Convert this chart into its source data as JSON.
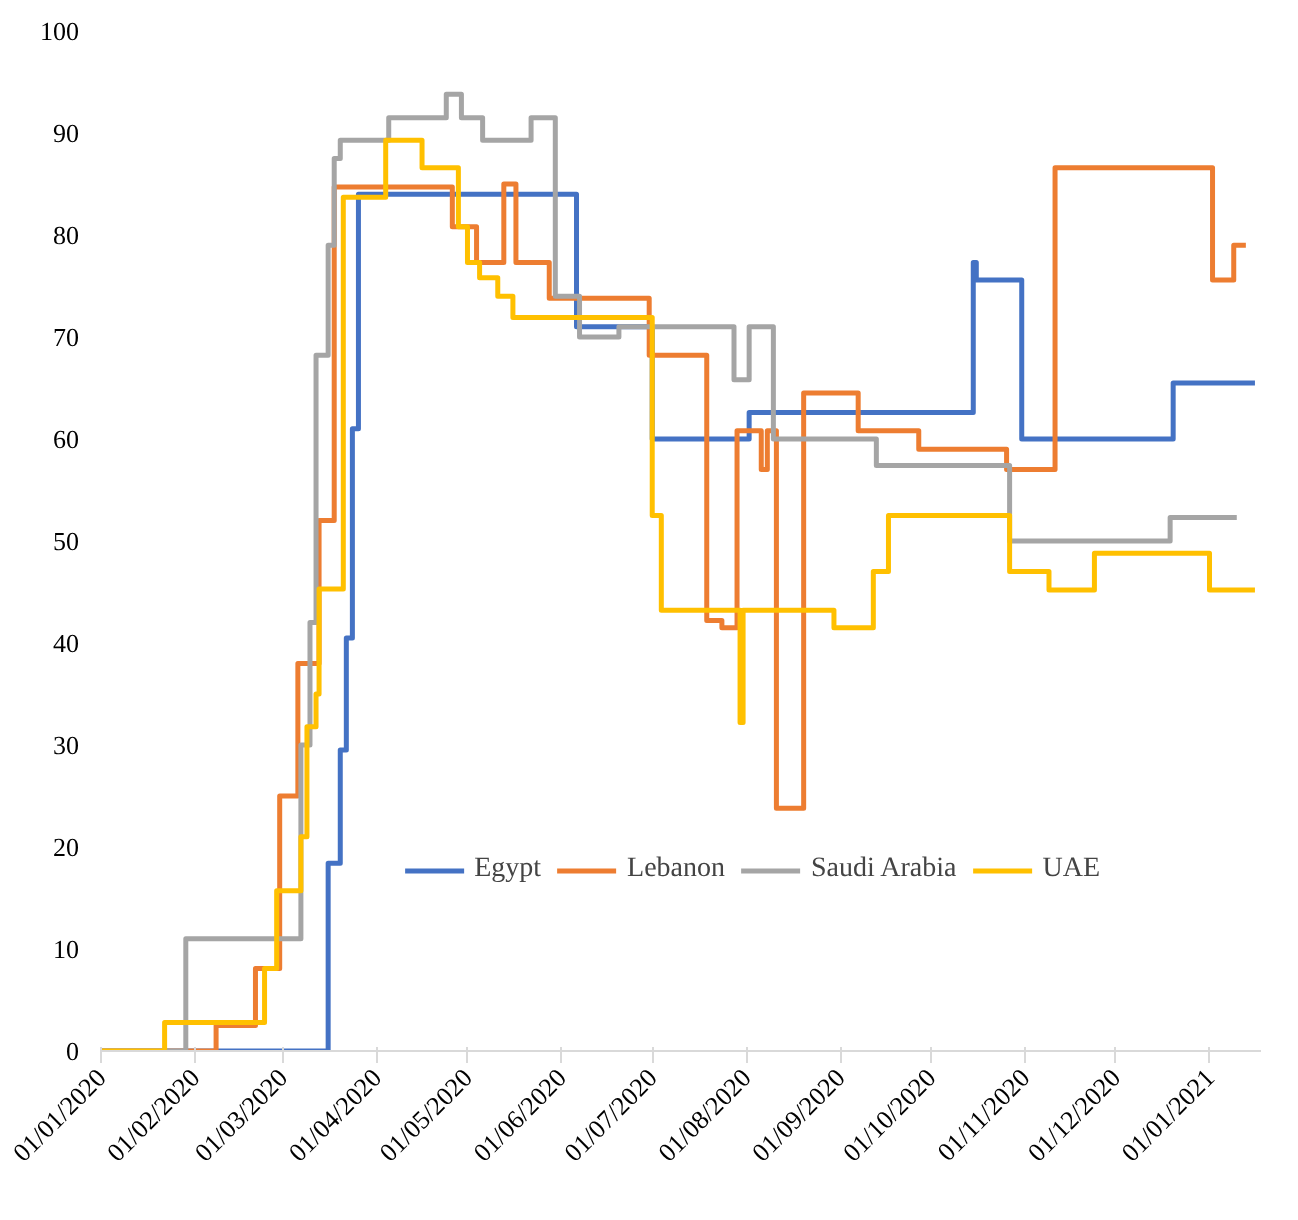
{
  "chart_data": {
    "type": "step",
    "xlim": [
      "2020-01-01",
      "2021-01-18"
    ],
    "xticks": [
      {
        "value": "2020-01-01",
        "label": "01/01/2020"
      },
      {
        "value": "2020-02-01",
        "label": "01/02/2020"
      },
      {
        "value": "2020-03-01",
        "label": "01/03/2020"
      },
      {
        "value": "2020-04-01",
        "label": "01/04/2020"
      },
      {
        "value": "2020-05-01",
        "label": "01/05/2020"
      },
      {
        "value": "2020-06-01",
        "label": "01/06/2020"
      },
      {
        "value": "2020-07-01",
        "label": "01/07/2020"
      },
      {
        "value": "2020-08-01",
        "label": "01/08/2020"
      },
      {
        "value": "2020-09-01",
        "label": "01/09/2020"
      },
      {
        "value": "2020-10-01",
        "label": "01/10/2020"
      },
      {
        "value": "2020-11-01",
        "label": "01/11/2020"
      },
      {
        "value": "2020-12-01",
        "label": "01/12/2020"
      },
      {
        "value": "2021-01-01",
        "label": "01/01/2021"
      }
    ],
    "ylim": [
      0,
      100
    ],
    "yticks": [
      0,
      10,
      20,
      30,
      40,
      50,
      60,
      70,
      80,
      90,
      100
    ],
    "grid": false,
    "legend": "bottom right",
    "line_style": "solid",
    "marker": "none",
    "series": [
      {
        "name": "Egypt",
        "color": "#4472c4",
        "x": [
          "2020-01-01",
          "2020-03-16",
          "2020-03-20",
          "2020-03-22",
          "2020-03-24",
          "2020-03-26",
          "2020-06-06",
          "2020-07-01",
          "2020-08-02",
          "2020-10-15",
          "2020-10-16",
          "2020-10-31",
          "2020-12-20",
          "2021-01-16"
        ],
        "values": [
          0,
          18.4,
          29.5,
          40.5,
          61,
          84,
          71,
          60,
          62.6,
          77.3,
          75.6,
          60,
          65.5,
          65.5
        ]
      },
      {
        "name": "Lebanon",
        "color": "#ed7d31",
        "x": [
          "2020-01-01",
          "2020-02-08",
          "2020-02-21",
          "2020-02-29",
          "2020-03-06",
          "2020-03-13",
          "2020-03-18",
          "2020-04-26",
          "2020-05-04",
          "2020-05-13",
          "2020-05-17",
          "2020-05-28",
          "2020-06-30",
          "2020-07-19",
          "2020-07-24",
          "2020-07-29",
          "2020-08-06",
          "2020-08-08",
          "2020-08-11",
          "2020-08-20",
          "2020-09-07",
          "2020-09-27",
          "2020-10-26",
          "2020-11-11",
          "2021-01-02",
          "2021-01-09",
          "2021-01-13"
        ],
        "values": [
          0,
          2.5,
          8.1,
          25,
          38,
          52,
          84.7,
          80.8,
          77.3,
          85,
          77.3,
          73.8,
          68.2,
          42.2,
          41.5,
          60.8,
          57,
          60.8,
          23.8,
          64.5,
          60.8,
          59,
          57,
          86.6,
          75.6,
          79,
          79
        ]
      },
      {
        "name": "Saudi Arabia",
        "color": "#a5a5a5",
        "x": [
          "2020-01-01",
          "2020-01-29",
          "2020-03-07",
          "2020-03-10",
          "2020-03-12",
          "2020-03-16",
          "2020-03-18",
          "2020-03-20",
          "2020-04-05",
          "2020-04-24",
          "2020-04-29",
          "2020-05-06",
          "2020-05-22",
          "2020-05-30",
          "2020-06-07",
          "2020-06-20",
          "2020-07-28",
          "2020-08-02",
          "2020-08-10",
          "2020-09-13",
          "2020-10-27",
          "2020-12-19",
          "2021-01-10"
        ],
        "values": [
          0,
          11,
          30,
          42,
          68.2,
          79,
          87.5,
          89.3,
          91.5,
          93.8,
          91.5,
          89.3,
          91.5,
          74,
          70,
          71,
          65.8,
          71,
          60,
          57.4,
          50,
          52.3,
          52.3
        ]
      },
      {
        "name": "UAE",
        "color": "#ffc000",
        "x": [
          "2020-01-01",
          "2020-01-22",
          "2020-02-24",
          "2020-02-28",
          "2020-03-07",
          "2020-03-09",
          "2020-03-12",
          "2020-03-13",
          "2020-03-21",
          "2020-04-04",
          "2020-04-16",
          "2020-04-28",
          "2020-05-01",
          "2020-05-05",
          "2020-05-11",
          "2020-05-16",
          "2020-07-01",
          "2020-07-04",
          "2020-07-30",
          "2020-07-31",
          "2020-08-30",
          "2020-09-12",
          "2020-09-17",
          "2020-10-27",
          "2020-11-09",
          "2020-11-24",
          "2021-01-01",
          "2021-01-16"
        ],
        "values": [
          0,
          2.8,
          8.1,
          15.7,
          21,
          31.8,
          35,
          45.3,
          83.7,
          89.3,
          86.6,
          80.8,
          77.3,
          75.8,
          74,
          71.9,
          52.5,
          43.2,
          32.2,
          43.2,
          41.5,
          47,
          52.5,
          47,
          45.2,
          48.8,
          45.2,
          45.2
        ]
      }
    ]
  }
}
